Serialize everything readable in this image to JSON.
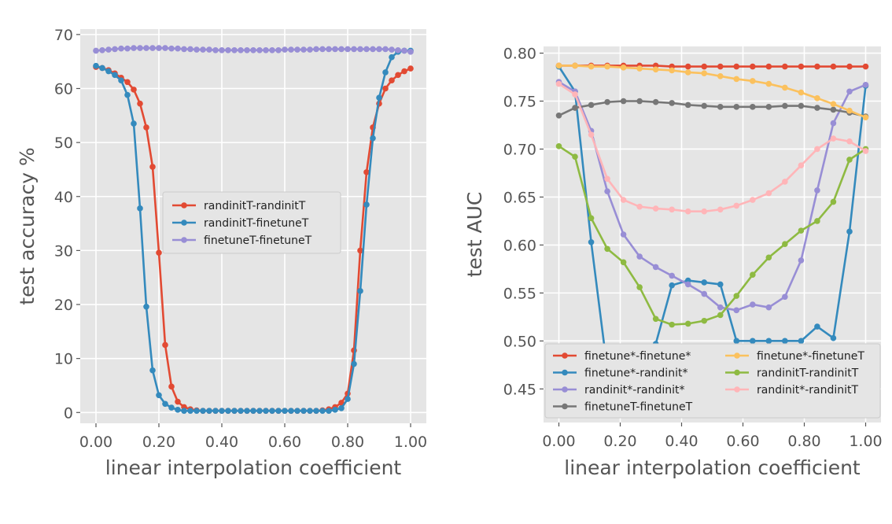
{
  "chart_data": [
    {
      "type": "line",
      "title": "",
      "xlabel": "linear interpolation coefficient",
      "ylabel": "test accuracy %",
      "xlim": [
        -0.05,
        1.05
      ],
      "ylim": [
        -2,
        71
      ],
      "xticks": [
        0,
        0.2,
        0.4,
        0.6,
        0.8,
        1.0
      ],
      "xtick_labels": [
        "0.00",
        "0.20",
        "0.40",
        "0.60",
        "0.80",
        "1.00"
      ],
      "yticks": [
        0,
        10,
        20,
        30,
        40,
        50,
        60,
        70
      ],
      "ytick_labels": [
        "0",
        "10",
        "20",
        "30",
        "40",
        "50",
        "60",
        "70"
      ],
      "grid": true,
      "legend_position": "center",
      "series": [
        {
          "name": "randinitT-randinitT",
          "color": "#e24a33",
          "x": [
            0,
            0.02,
            0.04,
            0.06,
            0.08,
            0.1,
            0.12,
            0.14,
            0.16,
            0.18,
            0.2,
            0.22,
            0.24,
            0.26,
            0.28,
            0.3,
            0.32,
            0.34,
            0.36,
            0.38,
            0.4,
            0.42,
            0.44,
            0.46,
            0.48,
            0.5,
            0.52,
            0.54,
            0.56,
            0.58,
            0.6,
            0.62,
            0.64,
            0.66,
            0.68,
            0.7,
            0.72,
            0.74,
            0.76,
            0.78,
            0.8,
            0.82,
            0.84,
            0.86,
            0.88,
            0.9,
            0.92,
            0.94,
            0.96,
            0.98,
            1.0
          ],
          "y": [
            64,
            63.8,
            63.4,
            62.8,
            62,
            61.2,
            59.8,
            57.2,
            52.8,
            45.5,
            29.6,
            12.5,
            4.8,
            2,
            1,
            0.6,
            0.4,
            0.3,
            0.3,
            0.3,
            0.3,
            0.3,
            0.3,
            0.3,
            0.3,
            0.3,
            0.3,
            0.3,
            0.3,
            0.3,
            0.3,
            0.3,
            0.3,
            0.3,
            0.3,
            0.3,
            0.4,
            0.6,
            1,
            1.8,
            3.5,
            11.5,
            30,
            44.5,
            52.8,
            57.2,
            60,
            61.5,
            62.5,
            63.2,
            63.7
          ]
        },
        {
          "name": "randinitT-finetuneT",
          "color": "#348abd",
          "x": [
            0,
            0.02,
            0.04,
            0.06,
            0.08,
            0.1,
            0.12,
            0.14,
            0.16,
            0.18,
            0.2,
            0.22,
            0.24,
            0.26,
            0.28,
            0.3,
            0.32,
            0.34,
            0.36,
            0.38,
            0.4,
            0.42,
            0.44,
            0.46,
            0.48,
            0.5,
            0.52,
            0.54,
            0.56,
            0.58,
            0.6,
            0.62,
            0.64,
            0.66,
            0.68,
            0.7,
            0.72,
            0.74,
            0.76,
            0.78,
            0.8,
            0.82,
            0.84,
            0.86,
            0.88,
            0.9,
            0.92,
            0.94,
            0.96,
            0.98,
            1.0
          ],
          "y": [
            64.2,
            63.8,
            63.2,
            62.5,
            61.5,
            58.8,
            53.5,
            37.8,
            19.6,
            7.8,
            3.2,
            1.6,
            0.9,
            0.5,
            0.3,
            0.3,
            0.3,
            0.3,
            0.3,
            0.3,
            0.3,
            0.3,
            0.3,
            0.3,
            0.3,
            0.3,
            0.3,
            0.3,
            0.3,
            0.3,
            0.3,
            0.3,
            0.3,
            0.3,
            0.3,
            0.3,
            0.3,
            0.3,
            0.5,
            0.8,
            2.5,
            9,
            22.5,
            38.5,
            50.8,
            58.3,
            63,
            65.8,
            66.8,
            67,
            67
          ]
        },
        {
          "name": "finetuneT-finetuneT",
          "color": "#988ed5",
          "x": [
            0,
            0.02,
            0.04,
            0.06,
            0.08,
            0.1,
            0.12,
            0.14,
            0.16,
            0.18,
            0.2,
            0.22,
            0.24,
            0.26,
            0.28,
            0.3,
            0.32,
            0.34,
            0.36,
            0.38,
            0.4,
            0.42,
            0.44,
            0.46,
            0.48,
            0.5,
            0.52,
            0.54,
            0.56,
            0.58,
            0.6,
            0.62,
            0.64,
            0.66,
            0.68,
            0.7,
            0.72,
            0.74,
            0.76,
            0.78,
            0.8,
            0.82,
            0.84,
            0.86,
            0.88,
            0.9,
            0.92,
            0.94,
            0.96,
            0.98,
            1.0
          ],
          "y": [
            67,
            67.1,
            67.2,
            67.3,
            67.4,
            67.4,
            67.5,
            67.5,
            67.5,
            67.5,
            67.5,
            67.5,
            67.4,
            67.4,
            67.3,
            67.3,
            67.2,
            67.2,
            67.2,
            67.1,
            67.1,
            67.1,
            67.1,
            67.1,
            67.1,
            67.1,
            67.1,
            67.1,
            67.1,
            67.1,
            67.2,
            67.2,
            67.2,
            67.2,
            67.2,
            67.3,
            67.3,
            67.3,
            67.3,
            67.3,
            67.3,
            67.3,
            67.3,
            67.3,
            67.3,
            67.3,
            67.3,
            67.2,
            67.1,
            67,
            66.8
          ]
        }
      ]
    },
    {
      "type": "line",
      "title": "",
      "xlabel": "linear interpolation coefficient",
      "ylabel": "test AUC",
      "xlim": [
        -0.05,
        1.05
      ],
      "ylim": [
        0.415,
        0.807
      ],
      "xticks": [
        0,
        0.2,
        0.4,
        0.6,
        0.8,
        1.0
      ],
      "xtick_labels": [
        "0.00",
        "0.20",
        "0.40",
        "0.60",
        "0.80",
        "1.00"
      ],
      "yticks": [
        0.45,
        0.5,
        0.55,
        0.6,
        0.65,
        0.7,
        0.75,
        0.8
      ],
      "ytick_labels": [
        "0.45",
        "0.50",
        "0.55",
        "0.60",
        "0.65",
        "0.70",
        "0.75",
        "0.80"
      ],
      "grid": true,
      "legend_position": "lower center",
      "series": [
        {
          "name": "finetune*-finetune*",
          "color": "#e24a33",
          "x": [
            0,
            0.0526,
            0.1053,
            0.1579,
            0.2105,
            0.2632,
            0.3158,
            0.3684,
            0.4211,
            0.4737,
            0.5263,
            0.5789,
            0.6316,
            0.6842,
            0.7368,
            0.7895,
            0.8421,
            0.8947,
            0.9474,
            1.0
          ],
          "y": [
            0.787,
            0.787,
            0.787,
            0.787,
            0.787,
            0.787,
            0.787,
            0.786,
            0.786,
            0.786,
            0.786,
            0.786,
            0.786,
            0.786,
            0.786,
            0.786,
            0.786,
            0.786,
            0.786,
            0.786
          ]
        },
        {
          "name": "finetune*-randinit*",
          "color": "#348abd",
          "x": [
            0,
            0.0526,
            0.1053,
            0.1579,
            0.2105,
            0.2632,
            0.3158,
            0.3684,
            0.4211,
            0.4737,
            0.5263,
            0.5789,
            0.6316,
            0.6842,
            0.7368,
            0.7895,
            0.8421,
            0.8947,
            0.9474,
            1.0
          ],
          "y": [
            0.786,
            0.76,
            0.603,
            0.47,
            0.428,
            0.44,
            0.497,
            0.558,
            0.563,
            0.561,
            0.559,
            0.5,
            0.5,
            0.5,
            0.5,
            0.5,
            0.515,
            0.503,
            0.614,
            0.766
          ]
        },
        {
          "name": "randinit*-randinit*",
          "color": "#988ed5",
          "x": [
            0,
            0.0526,
            0.1053,
            0.1579,
            0.2105,
            0.2632,
            0.3158,
            0.3684,
            0.4211,
            0.4737,
            0.5263,
            0.5789,
            0.6316,
            0.6842,
            0.7368,
            0.7895,
            0.8421,
            0.8947,
            0.9474,
            1.0
          ],
          "y": [
            0.77,
            0.76,
            0.719,
            0.656,
            0.611,
            0.588,
            0.577,
            0.568,
            0.559,
            0.549,
            0.535,
            0.532,
            0.538,
            0.535,
            0.546,
            0.584,
            0.657,
            0.727,
            0.76,
            0.767
          ]
        },
        {
          "name": "finetuneT-finetuneT",
          "color": "#777777",
          "x": [
            0,
            0.0526,
            0.1053,
            0.1579,
            0.2105,
            0.2632,
            0.3158,
            0.3684,
            0.4211,
            0.4737,
            0.5263,
            0.5789,
            0.6316,
            0.6842,
            0.7368,
            0.7895,
            0.8421,
            0.8947,
            0.9474,
            1.0
          ],
          "y": [
            0.735,
            0.743,
            0.746,
            0.749,
            0.75,
            0.75,
            0.749,
            0.748,
            0.746,
            0.745,
            0.744,
            0.744,
            0.744,
            0.744,
            0.745,
            0.745,
            0.743,
            0.741,
            0.738,
            0.734
          ]
        },
        {
          "name": "finetune*-finetuneT",
          "color": "#fbc15e",
          "x": [
            0,
            0.0526,
            0.1053,
            0.1579,
            0.2105,
            0.2632,
            0.3158,
            0.3684,
            0.4211,
            0.4737,
            0.5263,
            0.5789,
            0.6316,
            0.6842,
            0.7368,
            0.7895,
            0.8421,
            0.8947,
            0.9474,
            1.0
          ],
          "y": [
            0.787,
            0.787,
            0.786,
            0.786,
            0.785,
            0.784,
            0.783,
            0.782,
            0.78,
            0.779,
            0.776,
            0.773,
            0.771,
            0.768,
            0.764,
            0.759,
            0.753,
            0.747,
            0.74,
            0.733
          ]
        },
        {
          "name": "randinitT-randinitT",
          "color": "#8eba42",
          "x": [
            0,
            0.0526,
            0.1053,
            0.1579,
            0.2105,
            0.2632,
            0.3158,
            0.3684,
            0.4211,
            0.4737,
            0.5263,
            0.5789,
            0.6316,
            0.6842,
            0.7368,
            0.7895,
            0.8421,
            0.8947,
            0.9474,
            1.0
          ],
          "y": [
            0.703,
            0.692,
            0.628,
            0.596,
            0.582,
            0.556,
            0.523,
            0.517,
            0.518,
            0.521,
            0.527,
            0.547,
            0.569,
            0.587,
            0.601,
            0.615,
            0.625,
            0.645,
            0.689,
            0.7
          ]
        },
        {
          "name": "randinit*-randinitT",
          "color": "#ffb5b8",
          "x": [
            0,
            0.0526,
            0.1053,
            0.1579,
            0.2105,
            0.2632,
            0.3158,
            0.3684,
            0.4211,
            0.4737,
            0.5263,
            0.5789,
            0.6316,
            0.6842,
            0.7368,
            0.7895,
            0.8421,
            0.8947,
            0.9474,
            1.0
          ],
          "y": [
            0.768,
            0.757,
            0.715,
            0.669,
            0.647,
            0.64,
            0.638,
            0.637,
            0.635,
            0.635,
            0.637,
            0.641,
            0.647,
            0.654,
            0.666,
            0.683,
            0.7,
            0.711,
            0.708,
            0.698
          ]
        }
      ]
    }
  ]
}
